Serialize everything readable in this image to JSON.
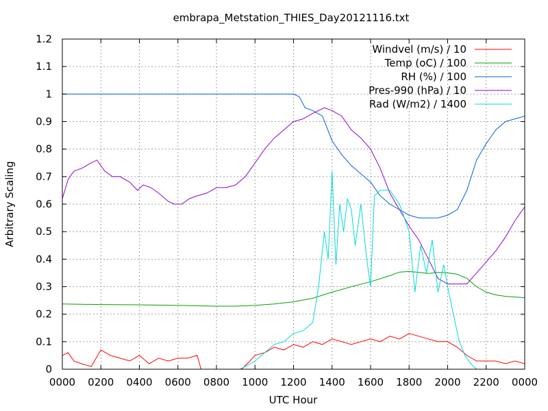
{
  "chart_data": {
    "type": "line",
    "title": "embrapa_Metstation_THIES_Day20121116.txt",
    "xlabel": "UTC Hour",
    "ylabel": "Arbitrary Scaling",
    "xlim": [
      0,
      24
    ],
    "ylim": [
      0,
      1.2
    ],
    "grid": true,
    "legend_position": "top-right",
    "x_ticks": [
      {
        "value": 0,
        "label": "0000"
      },
      {
        "value": 2,
        "label": "0200"
      },
      {
        "value": 4,
        "label": "0400"
      },
      {
        "value": 6,
        "label": "0600"
      },
      {
        "value": 8,
        "label": "0800"
      },
      {
        "value": 10,
        "label": "1000"
      },
      {
        "value": 12,
        "label": "1200"
      },
      {
        "value": 14,
        "label": "1400"
      },
      {
        "value": 16,
        "label": "1600"
      },
      {
        "value": 18,
        "label": "1800"
      },
      {
        "value": 20,
        "label": "2000"
      },
      {
        "value": 22,
        "label": "2200"
      },
      {
        "value": 24,
        "label": "0000"
      }
    ],
    "y_ticks": [
      {
        "value": 0,
        "label": "0"
      },
      {
        "value": 0.1,
        "label": "0.1"
      },
      {
        "value": 0.2,
        "label": "0.2"
      },
      {
        "value": 0.3,
        "label": "0.3"
      },
      {
        "value": 0.4,
        "label": "0.4"
      },
      {
        "value": 0.5,
        "label": "0.5"
      },
      {
        "value": 0.6,
        "label": "0.6"
      },
      {
        "value": 0.7,
        "label": "0.7"
      },
      {
        "value": 0.8,
        "label": "0.8"
      },
      {
        "value": 0.9,
        "label": "0.9"
      },
      {
        "value": 1.0,
        "label": "1"
      },
      {
        "value": 1.1,
        "label": "1.1"
      },
      {
        "value": 1.2,
        "label": "1.2"
      }
    ],
    "series": [
      {
        "name": "Windvel (m/s) / 10",
        "color": "#ff0000",
        "x": [
          0,
          0.3,
          0.6,
          1.0,
          1.5,
          2.0,
          2.5,
          3.0,
          3.5,
          4.0,
          4.5,
          5.0,
          5.5,
          6.0,
          6.5,
          7.0,
          7.2,
          7.6,
          8.0,
          8.5,
          9.0,
          9.3,
          9.6,
          10.0,
          10.5,
          11.0,
          11.5,
          12.0,
          12.5,
          13.0,
          13.5,
          14.0,
          14.5,
          15.0,
          15.5,
          16.0,
          16.5,
          17.0,
          17.5,
          18.0,
          18.5,
          19.0,
          19.5,
          20.0,
          20.5,
          21.0,
          21.5,
          22.0,
          22.5,
          23.0,
          23.5,
          24.0
        ],
        "values": [
          0.05,
          0.06,
          0.03,
          0.02,
          0.01,
          0.07,
          0.05,
          0.04,
          0.03,
          0.05,
          0.02,
          0.04,
          0.03,
          0.04,
          0.04,
          0.05,
          0.0,
          0.0,
          0.0,
          0.0,
          0.0,
          0.0,
          0.02,
          0.05,
          0.06,
          0.08,
          0.07,
          0.09,
          0.08,
          0.1,
          0.09,
          0.11,
          0.1,
          0.09,
          0.1,
          0.11,
          0.1,
          0.12,
          0.11,
          0.13,
          0.12,
          0.11,
          0.1,
          0.1,
          0.08,
          0.05,
          0.03,
          0.03,
          0.03,
          0.02,
          0.03,
          0.02
        ]
      },
      {
        "name": "Temp (oC) / 100",
        "color": "#00a000",
        "x": [
          0,
          2,
          4,
          6,
          8,
          9,
          10,
          11,
          12,
          13,
          14,
          15,
          16,
          17,
          17.5,
          18,
          18.5,
          19,
          19.5,
          20,
          20.5,
          21,
          21.5,
          22,
          22.5,
          23,
          24
        ],
        "values": [
          0.237,
          0.235,
          0.234,
          0.232,
          0.229,
          0.229,
          0.232,
          0.237,
          0.245,
          0.258,
          0.28,
          0.3,
          0.318,
          0.34,
          0.353,
          0.355,
          0.352,
          0.348,
          0.352,
          0.35,
          0.345,
          0.33,
          0.3,
          0.28,
          0.27,
          0.265,
          0.26
        ]
      },
      {
        "name": "RH (%) / 100",
        "color": "#0060e0",
        "x": [
          0,
          12,
          12.3,
          12.6,
          13,
          13.5,
          14,
          14.5,
          15,
          15.5,
          16,
          16.5,
          17,
          17.5,
          18,
          18.5,
          19,
          19.5,
          20,
          20.5,
          21,
          21.5,
          22,
          22.5,
          23,
          23.5,
          24
        ],
        "values": [
          1.0,
          1.0,
          0.99,
          0.95,
          0.94,
          0.92,
          0.83,
          0.78,
          0.74,
          0.71,
          0.68,
          0.63,
          0.6,
          0.58,
          0.56,
          0.55,
          0.55,
          0.55,
          0.56,
          0.58,
          0.65,
          0.76,
          0.82,
          0.87,
          0.9,
          0.91,
          0.92
        ]
      },
      {
        "name": "Pres-990 (hPa) / 10",
        "color": "#9000d0",
        "x": [
          0,
          0.3,
          0.6,
          1.0,
          1.5,
          1.8,
          2.2,
          2.6,
          3.0,
          3.5,
          3.9,
          4.2,
          4.6,
          5.0,
          5.5,
          5.8,
          6.2,
          6.6,
          7.0,
          7.5,
          8.0,
          8.5,
          9.0,
          9.5,
          10.0,
          10.5,
          11.0,
          11.5,
          12.0,
          12.5,
          13.0,
          13.3,
          13.6,
          14.0,
          14.5,
          15.0,
          15.5,
          16.0,
          16.5,
          17.0,
          17.5,
          18.0,
          18.5,
          19.0,
          19.5,
          20.0,
          20.5,
          21.0,
          21.5,
          22.0,
          22.5,
          23.0,
          23.5,
          24.0
        ],
        "values": [
          0.62,
          0.69,
          0.72,
          0.73,
          0.75,
          0.76,
          0.72,
          0.7,
          0.7,
          0.68,
          0.65,
          0.67,
          0.66,
          0.64,
          0.61,
          0.6,
          0.6,
          0.62,
          0.63,
          0.64,
          0.66,
          0.66,
          0.67,
          0.7,
          0.75,
          0.8,
          0.84,
          0.87,
          0.9,
          0.91,
          0.93,
          0.94,
          0.95,
          0.94,
          0.92,
          0.87,
          0.84,
          0.8,
          0.73,
          0.64,
          0.58,
          0.52,
          0.47,
          0.4,
          0.33,
          0.31,
          0.31,
          0.31,
          0.35,
          0.39,
          0.43,
          0.48,
          0.54,
          0.59
        ]
      },
      {
        "name": "Rad (W/m2) / 1400",
        "color": "#00d8d8",
        "x": [
          9.2,
          9.5,
          10,
          10.5,
          11,
          11.5,
          12,
          12.5,
          13,
          13.3,
          13.6,
          13.8,
          14.0,
          14.2,
          14.4,
          14.6,
          14.8,
          15.0,
          15.2,
          15.5,
          15.8,
          16.0,
          16.2,
          16.5,
          17.0,
          17.5,
          18.0,
          18.3,
          18.6,
          18.9,
          19.2,
          19.5,
          19.8,
          20.0,
          20.3,
          20.6,
          20.9,
          21.2,
          21.5
        ],
        "values": [
          0.0,
          0.01,
          0.03,
          0.06,
          0.09,
          0.1,
          0.13,
          0.14,
          0.17,
          0.3,
          0.5,
          0.4,
          0.72,
          0.38,
          0.6,
          0.5,
          0.62,
          0.58,
          0.45,
          0.6,
          0.4,
          0.3,
          0.63,
          0.65,
          0.65,
          0.6,
          0.5,
          0.28,
          0.45,
          0.35,
          0.47,
          0.28,
          0.38,
          0.3,
          0.2,
          0.1,
          0.05,
          0.02,
          0.0
        ]
      }
    ]
  }
}
